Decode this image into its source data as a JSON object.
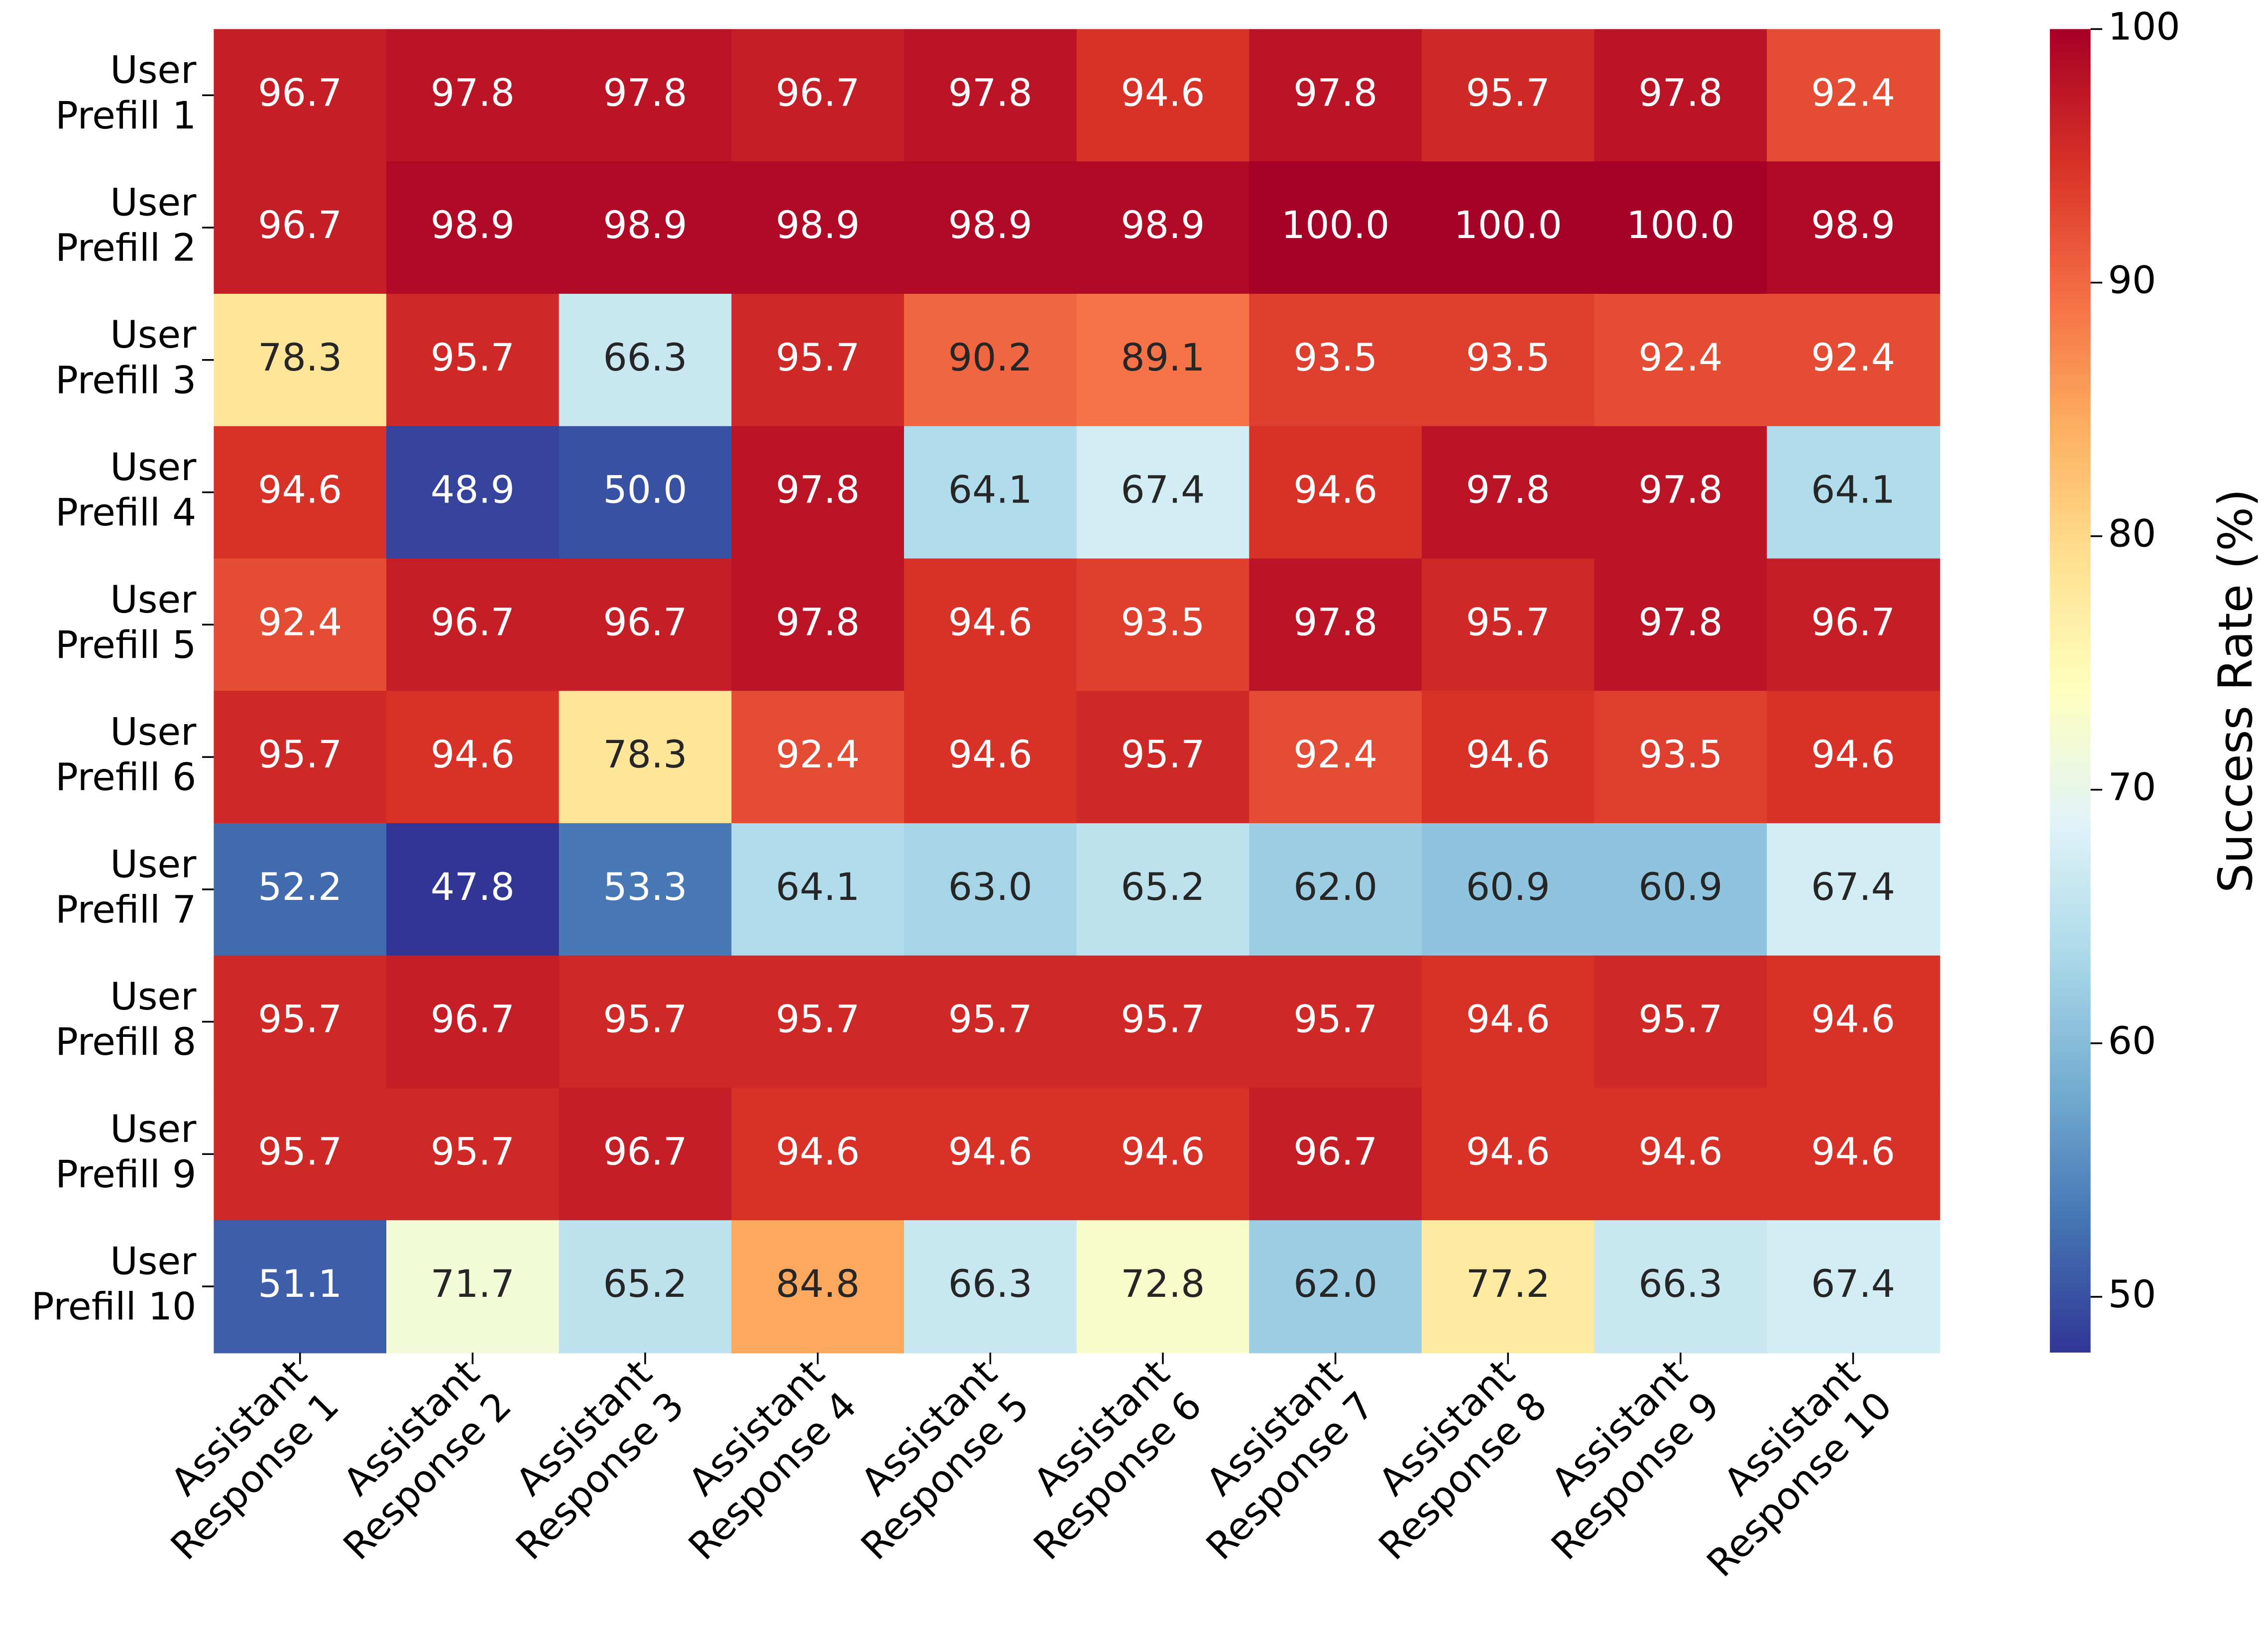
{
  "chart_data": {
    "type": "heatmap",
    "rows": [
      "User\nPrefill 1",
      "User\nPrefill 2",
      "User\nPrefill 3",
      "User\nPrefill 4",
      "User\nPrefill 5",
      "User\nPrefill 6",
      "User\nPrefill 7",
      "User\nPrefill 8",
      "User\nPrefill 9",
      "User\nPrefill 10"
    ],
    "columns": [
      "Assistant\nResponse 1",
      "Assistant\nResponse 2",
      "Assistant\nResponse 3",
      "Assistant\nResponse 4",
      "Assistant\nResponse 5",
      "Assistant\nResponse 6",
      "Assistant\nResponse 7",
      "Assistant\nResponse 8",
      "Assistant\nResponse 9",
      "Assistant\nResponse 10"
    ],
    "values": [
      [
        96.7,
        97.8,
        97.8,
        96.7,
        97.8,
        94.6,
        97.8,
        95.7,
        97.8,
        92.4
      ],
      [
        96.7,
        98.9,
        98.9,
        98.9,
        98.9,
        98.9,
        100,
        100,
        100,
        98.9
      ],
      [
        78.3,
        95.7,
        66.3,
        95.7,
        90.2,
        89.1,
        93.5,
        93.5,
        92.4,
        92.4
      ],
      [
        94.6,
        48.9,
        50,
        97.8,
        64.1,
        67.4,
        94.6,
        97.8,
        97.8,
        64.1
      ],
      [
        92.4,
        96.7,
        96.7,
        97.8,
        94.6,
        93.5,
        97.8,
        95.7,
        97.8,
        96.7
      ],
      [
        95.7,
        94.6,
        78.3,
        92.4,
        94.6,
        95.7,
        92.4,
        94.6,
        93.5,
        94.6
      ],
      [
        52.2,
        47.8,
        53.3,
        64.1,
        63,
        65.2,
        62,
        60.9,
        60.9,
        67.4
      ],
      [
        95.7,
        96.7,
        95.7,
        95.7,
        95.7,
        95.7,
        95.7,
        94.6,
        95.7,
        94.6
      ],
      [
        95.7,
        95.7,
        96.7,
        94.6,
        94.6,
        94.6,
        96.7,
        94.6,
        94.6,
        94.6
      ],
      [
        51.1,
        71.7,
        65.2,
        84.8,
        66.3,
        72.8,
        62,
        77.2,
        66.3,
        67.4
      ]
    ],
    "value_labels": [
      [
        "96.7",
        "97.8",
        "97.8",
        "96.7",
        "97.8",
        "94.6",
        "97.8",
        "95.7",
        "97.8",
        "92.4"
      ],
      [
        "96.7",
        "98.9",
        "98.9",
        "98.9",
        "98.9",
        "98.9",
        "100.0",
        "100.0",
        "100.0",
        "98.9"
      ],
      [
        "78.3",
        "95.7",
        "66.3",
        "95.7",
        "90.2",
        "89.1",
        "93.5",
        "93.5",
        "92.4",
        "92.4"
      ],
      [
        "94.6",
        "48.9",
        "50.0",
        "97.8",
        "64.1",
        "67.4",
        "94.6",
        "97.8",
        "97.8",
        "64.1"
      ],
      [
        "92.4",
        "96.7",
        "96.7",
        "97.8",
        "94.6",
        "93.5",
        "97.8",
        "95.7",
        "97.8",
        "96.7"
      ],
      [
        "95.7",
        "94.6",
        "78.3",
        "92.4",
        "94.6",
        "95.7",
        "92.4",
        "94.6",
        "93.5",
        "94.6"
      ],
      [
        "52.2",
        "47.8",
        "53.3",
        "64.1",
        "63.0",
        "65.2",
        "62.0",
        "60.9",
        "60.9",
        "67.4"
      ],
      [
        "95.7",
        "96.7",
        "95.7",
        "95.7",
        "95.7",
        "95.7",
        "95.7",
        "94.6",
        "95.7",
        "94.6"
      ],
      [
        "95.7",
        "95.7",
        "96.7",
        "94.6",
        "94.6",
        "94.6",
        "96.7",
        "94.6",
        "94.6",
        "94.6"
      ],
      [
        "51.1",
        "71.7",
        "65.2",
        "84.8",
        "66.3",
        "72.8",
        "62.0",
        "77.2",
        "66.3",
        "67.4"
      ]
    ],
    "colormap": [
      "#313695",
      "#4575b4",
      "#74add1",
      "#abd9e9",
      "#e0f3f8",
      "#ffffbf",
      "#fee090",
      "#fdae61",
      "#f46d43",
      "#d73027",
      "#a50026"
    ],
    "colorbar_label": "Success Rate (%)",
    "clim": [
      47.8,
      100
    ],
    "cticks": [
      50,
      60,
      70,
      80,
      90,
      100
    ]
  }
}
